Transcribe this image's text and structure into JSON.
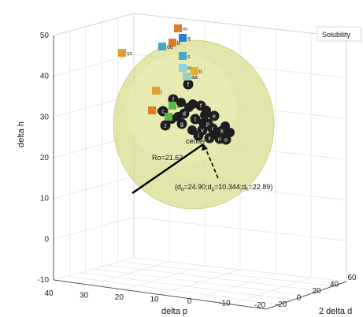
{
  "chart_data": {
    "type": "scatter",
    "view": "3d",
    "legend": {
      "text": "Solubility",
      "placement": "top-right"
    },
    "axes": {
      "x": {
        "label": "delta p",
        "ticks": [
          "40",
          "30",
          "20",
          "10",
          "0",
          "-10",
          "-20"
        ]
      },
      "y": {
        "label": "2 delta d",
        "ticks": [
          "-20",
          "0",
          "20",
          "40",
          "60"
        ]
      },
      "z": {
        "label": "delta h",
        "ticks": [
          "-10",
          "0",
          "10",
          "20",
          "30",
          "40",
          "50"
        ],
        "range": [
          -10,
          50
        ]
      }
    },
    "grid": true,
    "sphere": {
      "radius_label": "Ro=21.62",
      "center_label": "center",
      "center_coords": {
        "prefix": "(",
        "d": "d",
        "d_val": "=24.90;d",
        "p": "p",
        "p_val": "=10.344;d",
        "h": "h",
        "h_val": "=22.89)"
      },
      "fill_color": "#d8dc8a"
    },
    "points": {
      "good_color": "#1e1e1e",
      "bad_colors": [
        "#e07b2a",
        "#2a7fd4",
        "#5cb845",
        "#e0b030",
        "#43a8c8"
      ],
      "labels_in": [
        "f",
        "f",
        "f",
        "c",
        "d",
        "e",
        "t",
        "p",
        "z",
        "g",
        "v",
        "w",
        "n",
        "x",
        "r",
        "o",
        "i",
        "k"
      ],
      "labels_out": [
        "m",
        "ss",
        "b",
        "q",
        "oo",
        "s",
        "hh",
        "aa",
        "ii",
        "j",
        "h",
        "d",
        "j"
      ]
    }
  }
}
